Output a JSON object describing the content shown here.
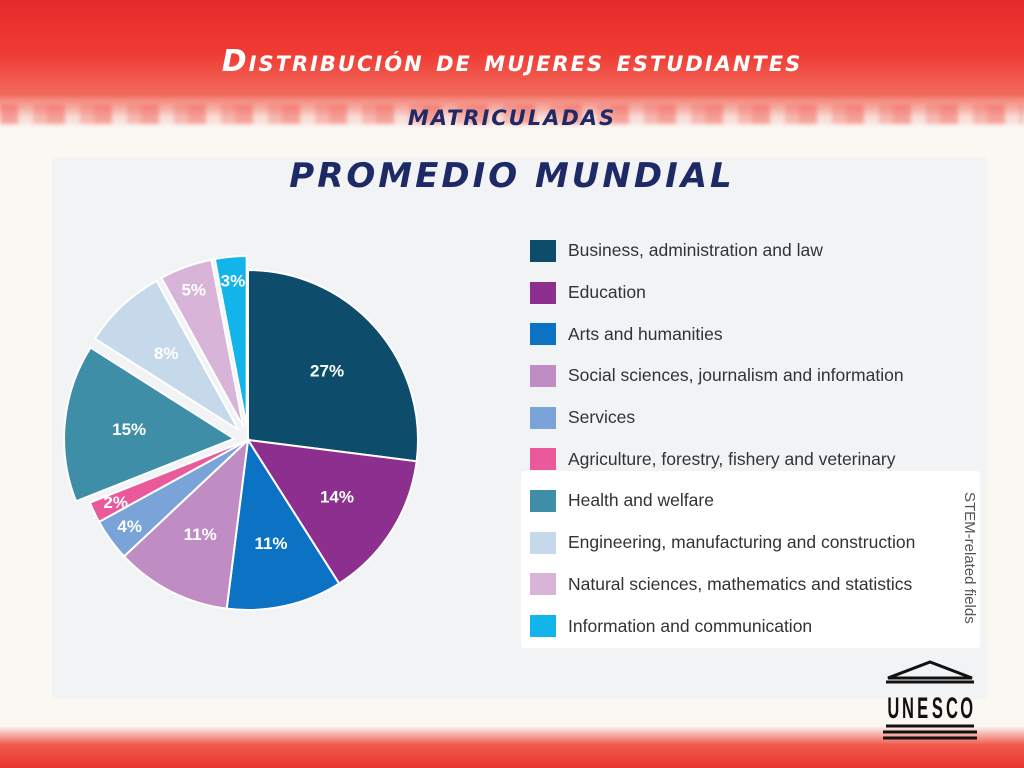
{
  "header": {
    "title_line1": "Distribución de mujeres estudiantes",
    "title_line2": "matriculadas",
    "title_line3": "PROMEDIO MUNDIAL"
  },
  "chart_data": {
    "type": "pie",
    "categories": [
      "Business, administration and law",
      "Education",
      "Arts and humanities",
      "Social sciences, journalism and information",
      "Services",
      "Agriculture, forestry, fishery and veterinary",
      "Health and welfare",
      "Engineering, manufacturing and construction",
      "Natural sciences, mathematics and statistics",
      "Information and communication"
    ],
    "values": [
      27,
      14,
      11,
      11,
      4,
      2,
      15,
      8,
      5,
      3
    ],
    "labels": [
      "27%",
      "14%",
      "11%",
      "11%",
      "4%",
      "2%",
      "15%",
      "8%",
      "5%",
      "3%"
    ],
    "colors": [
      "#0d4d6b",
      "#8d2f8e",
      "#0c73c4",
      "#c08cc4",
      "#7aa4d8",
      "#ea5a9a",
      "#3f8ea8",
      "#c6d9ea",
      "#d7b4d8",
      "#12b4ea"
    ],
    "stem_group_label": "STEM-related fields",
    "stem_categories": [
      "Health and welfare",
      "Engineering, manufacturing and construction",
      "Natural sciences, mathematics and statistics",
      "Information and communication"
    ],
    "legend_position": "right"
  },
  "logo": {
    "text": "UNESCO",
    "icon": "unesco-temple-icon"
  }
}
